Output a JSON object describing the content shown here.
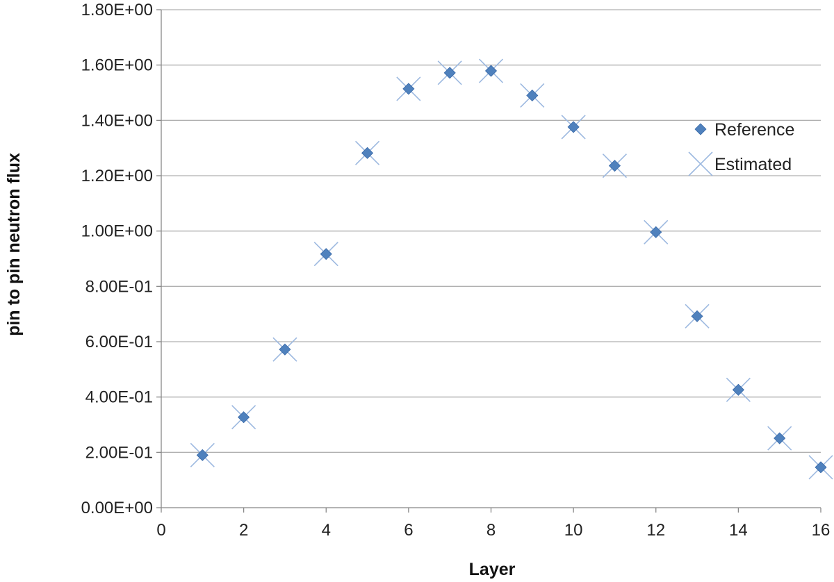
{
  "chart_data": {
    "type": "scatter",
    "title": "",
    "xlabel": "Layer",
    "ylabel": "pin to pin neutron flux",
    "xlim": [
      0,
      16
    ],
    "ylim": [
      0,
      1.8
    ],
    "x_ticks": [
      "0",
      "2",
      "4",
      "6",
      "8",
      "10",
      "12",
      "14",
      "16"
    ],
    "y_ticks": [
      "0.00E+00",
      "2.00E-01",
      "4.00E-01",
      "6.00E-01",
      "8.00E-01",
      "1.00E+00",
      "1.20E+00",
      "1.40E+00",
      "1.60E+00",
      "1.80E+00"
    ],
    "grid": "horizontal",
    "legend_position": "right",
    "series": [
      {
        "name": "Reference",
        "marker": "diamond",
        "color": "#4F81BD",
        "x": [
          1,
          2,
          3,
          4,
          5,
          6,
          7,
          8,
          9,
          10,
          11,
          12,
          13,
          14,
          15,
          16
        ],
        "y": [
          0.19,
          0.327,
          0.572,
          0.917,
          1.282,
          1.514,
          1.572,
          1.579,
          1.49,
          1.376,
          1.236,
          0.996,
          0.692,
          0.426,
          0.251,
          0.146
        ]
      },
      {
        "name": "Estimated",
        "marker": "x",
        "color": "#9DB9E0",
        "x": [
          1,
          2,
          3,
          4,
          5,
          6,
          7,
          8,
          9,
          10,
          11,
          12,
          13,
          14,
          15,
          16
        ],
        "y": [
          0.19,
          0.327,
          0.572,
          0.917,
          1.282,
          1.514,
          1.572,
          1.579,
          1.49,
          1.376,
          1.236,
          0.996,
          0.692,
          0.426,
          0.251,
          0.146
        ]
      }
    ]
  }
}
